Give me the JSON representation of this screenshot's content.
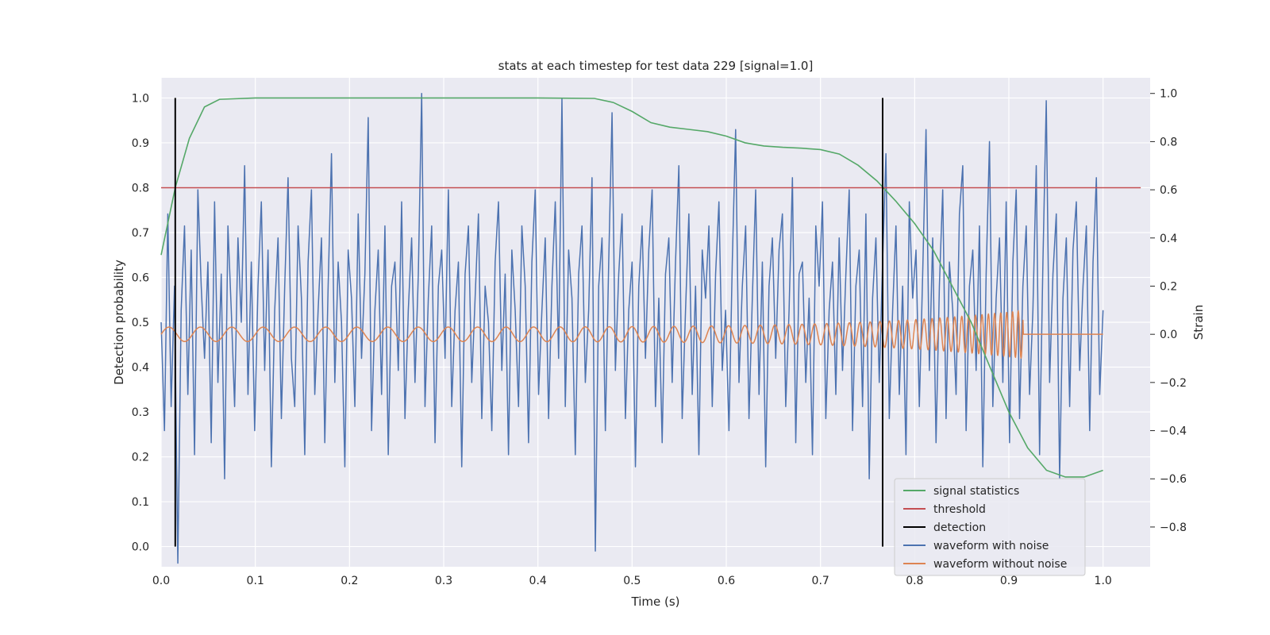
{
  "chart_data": {
    "type": "line",
    "title": "stats at each timestep for test data 229 [signal=1.0]",
    "xlabel": "Time (s)",
    "ylabel": "Detection probability",
    "ylabel_right": "Strain",
    "xlim": [
      0.0,
      1.05
    ],
    "ylim": [
      -0.045,
      1.045
    ],
    "ylim_right": [
      -0.965,
      1.065
    ],
    "xticks": [
      0.0,
      0.1,
      0.2,
      0.3,
      0.4,
      0.5,
      0.6,
      0.7,
      0.8,
      0.9,
      1.0
    ],
    "xtick_labels": [
      "0.0",
      "0.1",
      "0.2",
      "0.3",
      "0.4",
      "0.5",
      "0.6",
      "0.7",
      "0.8",
      "0.9",
      "1.0"
    ],
    "yticks": [
      0.0,
      0.1,
      0.2,
      0.3,
      0.4,
      0.5,
      0.6,
      0.7,
      0.8,
      0.9,
      1.0
    ],
    "ytick_labels": [
      "0.0",
      "0.1",
      "0.2",
      "0.3",
      "0.4",
      "0.5",
      "0.6",
      "0.7",
      "0.8",
      "0.9",
      "1.0"
    ],
    "yticks_right": [
      -0.8,
      -0.6,
      -0.4,
      -0.2,
      0.0,
      0.2,
      0.4,
      0.6,
      0.8,
      1.0
    ],
    "ytick_labels_right": [
      "−0.8",
      "−0.6",
      "−0.4",
      "−0.2",
      "0.0",
      "0.2",
      "0.4",
      "0.6",
      "0.8",
      "1.0"
    ],
    "grid": true,
    "legend_position": "lower-right",
    "colors": {
      "background": "#eaeaf2",
      "grid": "#ffffff",
      "signal": "#55a868",
      "threshold": "#c44e52",
      "detection": "#000000",
      "noisy": "#4c72b0",
      "clean": "#dd8452"
    },
    "series": [
      {
        "name": "signal statistics",
        "axis": "left",
        "x": [
          0.0,
          0.015,
          0.03,
          0.046,
          0.062,
          0.1,
          0.2,
          0.3,
          0.4,
          0.46,
          0.48,
          0.5,
          0.52,
          0.54,
          0.56,
          0.58,
          0.6,
          0.62,
          0.64,
          0.66,
          0.68,
          0.7,
          0.72,
          0.74,
          0.76,
          0.78,
          0.8,
          0.82,
          0.84,
          0.86,
          0.88,
          0.9,
          0.92,
          0.94,
          0.96,
          0.98,
          1.0
        ],
        "values": [
          0.65,
          0.8,
          0.91,
          0.98,
          0.997,
          1.0,
          1.0,
          1.0,
          1.0,
          0.999,
          0.99,
          0.97,
          0.945,
          0.935,
          0.93,
          0.925,
          0.915,
          0.9,
          0.893,
          0.89,
          0.888,
          0.885,
          0.875,
          0.85,
          0.815,
          0.77,
          0.72,
          0.66,
          0.58,
          0.5,
          0.4,
          0.3,
          0.22,
          0.17,
          0.155,
          0.155,
          0.17
        ]
      },
      {
        "name": "threshold",
        "axis": "left",
        "x": [
          0.0,
          1.04
        ],
        "values": [
          0.8,
          0.8
        ]
      },
      {
        "name": "detection",
        "axis": "left",
        "segments": [
          {
            "x": 0.015,
            "y": [
              0.0,
              1.0
            ]
          },
          {
            "x": 0.766,
            "y": [
              0.0,
              1.0
            ]
          }
        ]
      },
      {
        "name": "waveform with noise",
        "axis": "right",
        "x_start": 0.0,
        "x_end": 1.0,
        "values": [
          0.05,
          -0.4,
          0.5,
          -0.3,
          0.2,
          -0.95,
          0.1,
          0.45,
          -0.25,
          0.35,
          -0.5,
          0.6,
          0.2,
          -0.1,
          0.3,
          -0.45,
          0.55,
          -0.2,
          0.25,
          -0.6,
          0.45,
          0.1,
          -0.3,
          0.4,
          0.05,
          0.7,
          -0.25,
          0.3,
          -0.4,
          0.2,
          0.55,
          -0.15,
          0.35,
          -0.55,
          0.1,
          0.4,
          -0.35,
          0.2,
          0.65,
          -0.1,
          -0.3,
          0.45,
          0.15,
          -0.5,
          0.3,
          0.6,
          -0.25,
          0.1,
          0.4,
          -0.45,
          0.2,
          0.75,
          -0.2,
          0.3,
          0.05,
          -0.55,
          0.35,
          0.15,
          -0.3,
          0.5,
          -0.1,
          0.25,
          0.9,
          -0.4,
          0.1,
          0.35,
          -0.25,
          0.45,
          -0.5,
          0.2,
          0.3,
          -0.15,
          0.55,
          -0.35,
          0.1,
          0.4,
          -0.2,
          0.25,
          1.0,
          -0.3,
          0.15,
          0.45,
          -0.45,
          0.2,
          0.35,
          -0.1,
          0.6,
          -0.3,
          0.1,
          0.3,
          -0.55,
          0.25,
          0.45,
          -0.2,
          0.15,
          0.5,
          -0.35,
          0.2,
          0.05,
          -0.4,
          0.3,
          0.55,
          -0.15,
          0.25,
          -0.5,
          0.35,
          0.1,
          -0.3,
          0.45,
          0.2,
          -0.45,
          0.3,
          0.6,
          -0.25,
          0.1,
          0.4,
          -0.35,
          0.2,
          0.55,
          -0.1,
          0.98,
          -0.3,
          0.35,
          0.15,
          -0.5,
          0.25,
          0.45,
          -0.2,
          0.1,
          0.65,
          -0.9,
          0.2,
          0.4,
          -0.4,
          0.3,
          0.92,
          -0.15,
          0.25,
          0.5,
          -0.35,
          0.1,
          0.3,
          -0.55,
          0.2,
          0.45,
          -0.1,
          0.35,
          0.6,
          -0.3,
          0.15,
          -0.45,
          0.25,
          0.4,
          -0.2,
          0.3,
          0.7,
          -0.35,
          0.1,
          0.5,
          -0.25,
          0.2,
          -0.5,
          0.35,
          0.15,
          0.45,
          -0.3,
          0.25,
          0.55,
          -0.15,
          0.1,
          -0.4,
          0.3,
          0.85,
          -0.2,
          0.2,
          0.45,
          -0.35,
          0.15,
          0.6,
          -0.25,
          0.3,
          -0.55,
          0.2,
          0.4,
          -0.1,
          0.35,
          0.5,
          -0.3,
          0.1,
          0.65,
          -0.45,
          0.25,
          0.3,
          -0.2,
          0.15,
          -0.5,
          0.45,
          0.2,
          0.55,
          -0.35,
          0.1,
          0.3,
          -0.25,
          0.4,
          -0.15,
          0.25,
          0.6,
          -0.4,
          0.2,
          0.35,
          -0.3,
          0.5,
          -0.6,
          0.15,
          0.4,
          -0.2,
          0.3,
          0.75,
          -0.35,
          0.1,
          0.45,
          -0.25,
          0.2,
          -0.5,
          0.55,
          0.15,
          0.35,
          -0.3,
          0.25,
          0.85,
          -0.15,
          0.4,
          -0.45,
          0.2,
          0.6,
          -0.35,
          0.3,
          0.1,
          -0.25,
          0.5,
          0.7,
          -0.4,
          0.2,
          0.35,
          -0.15,
          0.45,
          -0.55,
          0.25,
          0.8,
          -0.3,
          0.15,
          0.4,
          -0.2,
          0.55,
          -0.45,
          0.3,
          0.6,
          -0.35,
          0.2,
          0.45,
          -0.25,
          0.1,
          0.7,
          -0.5,
          0.3,
          0.97,
          -0.2,
          0.25,
          0.5,
          -0.6,
          0.15,
          0.4,
          -0.3,
          0.35,
          0.55,
          -0.15,
          0.2,
          0.45,
          -0.4,
          0.3,
          0.65,
          -0.25,
          0.1
        ]
      },
      {
        "name": "waveform without noise",
        "axis": "right",
        "x_start": 0.0,
        "x_end": 1.0,
        "chirp": {
          "f0_hz": 30,
          "f1_hz": 170,
          "t_merger": 0.915,
          "a0": 0.03,
          "a1": 0.1
        }
      }
    ]
  }
}
